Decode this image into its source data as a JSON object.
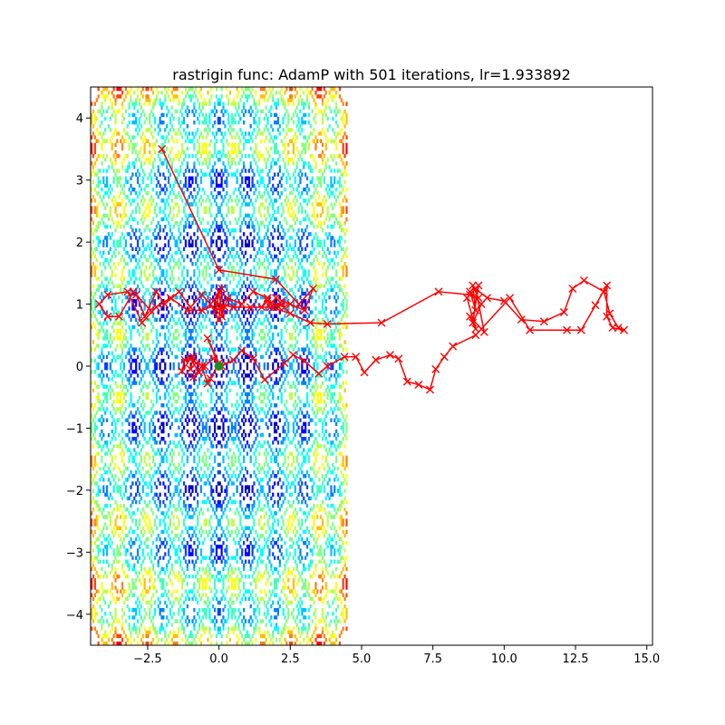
{
  "chart_data": {
    "type": "line",
    "title": "rastrigin func: AdamP with 501 iterations, lr=1.933892",
    "xlabel": "",
    "ylabel": "",
    "xlim": [
      -4.5,
      15.2
    ],
    "ylim": [
      -4.5,
      4.5
    ],
    "x_ticks": [
      -2.5,
      0.0,
      2.5,
      5.0,
      7.5,
      10.0,
      12.5,
      15.0
    ],
    "x_tick_labels": [
      "−2.5",
      "0.0",
      "2.5",
      "5.0",
      "7.5",
      "10.0",
      "12.5",
      "15.0"
    ],
    "y_ticks": [
      -4,
      -3,
      -2,
      -1,
      0,
      1,
      2,
      3,
      4
    ],
    "y_tick_labels": [
      "−4",
      "−3",
      "−2",
      "−1",
      "0",
      "1",
      "2",
      "3",
      "4"
    ],
    "grid": false,
    "background_contour": {
      "function": "rastrigin",
      "x_range": [
        -4.5,
        4.5
      ],
      "y_range": [
        -4.5,
        4.5
      ],
      "colormap": "jet"
    },
    "series": [
      {
        "color": "#ff0000",
        "marker": "x",
        "points": [
          [
            -2.0,
            3.5
          ],
          [
            0.0,
            1.55
          ],
          [
            2.0,
            1.4
          ],
          [
            2.8,
            1.0
          ],
          [
            3.3,
            1.25
          ],
          [
            3.0,
            0.9
          ],
          [
            2.5,
            1.0
          ],
          [
            2.2,
            1.05
          ],
          [
            2.1,
            0.95
          ],
          [
            1.8,
            1.0
          ],
          [
            2.0,
            1.1
          ],
          [
            2.3,
            0.95
          ],
          [
            1.7,
            1.05
          ],
          [
            1.5,
            0.95
          ],
          [
            1.7,
            1.1
          ],
          [
            1.2,
            1.2
          ],
          [
            0.8,
            1.0
          ],
          [
            0.3,
            1.1
          ],
          [
            0.1,
            0.8
          ],
          [
            0.0,
            1.2
          ],
          [
            -0.1,
            0.9
          ],
          [
            0.2,
            0.95
          ],
          [
            -0.2,
            1.05
          ],
          [
            0.1,
            1.25
          ],
          [
            0.0,
            0.75
          ],
          [
            -0.3,
            1.0
          ],
          [
            -0.6,
            1.15
          ],
          [
            -1.0,
            0.95
          ],
          [
            -1.4,
            1.2
          ],
          [
            -1.9,
            1.0
          ],
          [
            -2.2,
            1.2
          ],
          [
            -2.6,
            0.8
          ],
          [
            -2.9,
            1.15
          ],
          [
            -2.4,
            0.9
          ],
          [
            -3.0,
            1.2
          ],
          [
            -3.5,
            0.8
          ],
          [
            -3.9,
            0.8
          ],
          [
            -4.2,
            1.0
          ],
          [
            -3.9,
            1.15
          ],
          [
            -3.2,
            1.2
          ],
          [
            -2.7,
            0.7
          ],
          [
            -2.2,
            0.95
          ],
          [
            -1.7,
            1.1
          ],
          [
            -1.1,
            0.9
          ],
          [
            -0.6,
            0.9
          ],
          [
            0.0,
            1.0
          ],
          [
            0.5,
            0.95
          ],
          [
            1.1,
            0.95
          ],
          [
            1.8,
            0.95
          ],
          [
            2.5,
            0.85
          ],
          [
            3.2,
            0.7
          ],
          [
            3.8,
            0.68
          ],
          [
            5.7,
            0.7
          ],
          [
            7.7,
            1.2
          ],
          [
            8.8,
            1.15
          ],
          [
            9.1,
            1.1
          ],
          [
            8.9,
            1.3
          ],
          [
            9.0,
            0.9
          ],
          [
            8.8,
            1.2
          ],
          [
            9.2,
            1.0
          ],
          [
            8.9,
            0.7
          ],
          [
            9.1,
            1.3
          ],
          [
            8.7,
            1.1
          ],
          [
            9.0,
            0.6
          ],
          [
            8.8,
            0.8
          ],
          [
            9.3,
            0.55
          ],
          [
            9.0,
            1.25
          ],
          [
            9.4,
            1.1
          ],
          [
            10.0,
            1.05
          ],
          [
            10.6,
            0.75
          ],
          [
            11.4,
            0.72
          ],
          [
            12.1,
            0.87
          ],
          [
            12.4,
            1.25
          ],
          [
            12.8,
            1.38
          ],
          [
            13.5,
            1.2
          ],
          [
            13.7,
            0.85
          ],
          [
            14.0,
            0.62
          ],
          [
            14.2,
            0.58
          ],
          [
            13.8,
            0.62
          ],
          [
            13.6,
            0.8
          ],
          [
            13.6,
            1.3
          ],
          [
            13.2,
            0.98
          ],
          [
            12.7,
            0.58
          ],
          [
            12.2,
            0.58
          ],
          [
            10.9,
            0.58
          ],
          [
            10.2,
            1.1
          ],
          [
            9.0,
            0.5
          ],
          [
            8.2,
            0.32
          ],
          [
            7.9,
            0.15
          ],
          [
            7.6,
            -0.05
          ],
          [
            7.4,
            -0.38
          ],
          [
            7.0,
            -0.3
          ],
          [
            6.6,
            -0.25
          ],
          [
            6.3,
            0.12
          ],
          [
            6.0,
            0.18
          ],
          [
            5.5,
            0.1
          ],
          [
            5.1,
            -0.1
          ],
          [
            4.8,
            0.15
          ],
          [
            4.4,
            0.15
          ],
          [
            3.8,
            0.0
          ],
          [
            3.5,
            -0.12
          ],
          [
            3.0,
            0.08
          ],
          [
            2.6,
            0.18
          ],
          [
            2.3,
            0.05
          ],
          [
            1.6,
            -0.22
          ],
          [
            1.2,
            0.12
          ],
          [
            0.8,
            0.25
          ],
          [
            0.5,
            0.1
          ],
          [
            0.1,
            0.0
          ],
          [
            -0.2,
            0.12
          ],
          [
            -0.5,
            0.0
          ],
          [
            -0.8,
            0.05
          ],
          [
            -1.0,
            -0.05
          ],
          [
            -0.9,
            0.15
          ],
          [
            -1.2,
            0.1
          ],
          [
            -1.3,
            -0.08
          ],
          [
            -1.0,
            0.12
          ],
          [
            -0.7,
            -0.1
          ],
          [
            -0.9,
            -0.18
          ],
          [
            -0.6,
            0.0
          ],
          [
            -0.4,
            -0.28
          ],
          [
            -0.3,
            -0.2
          ],
          [
            0.0,
            0.05
          ],
          [
            -0.4,
            0.45
          ],
          [
            0.0,
            0.0
          ]
        ]
      }
    ],
    "minimum_marker": {
      "x": 0.0,
      "y": 0.0,
      "color": "#228b22",
      "marker": "circle"
    }
  }
}
